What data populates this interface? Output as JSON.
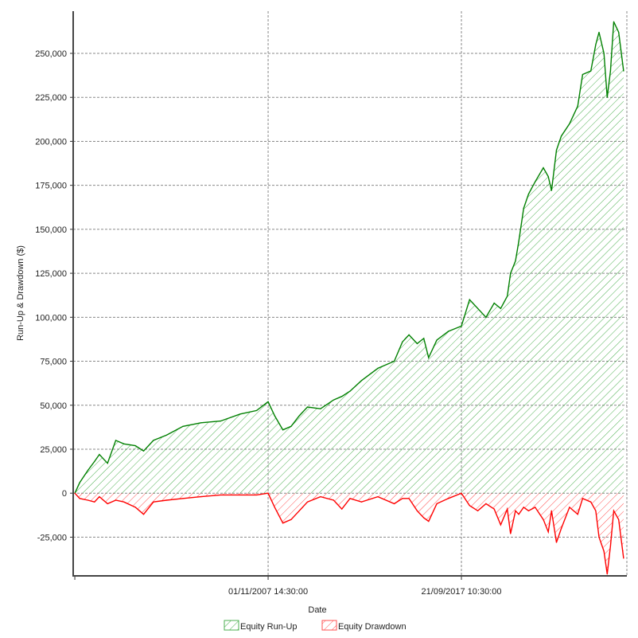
{
  "chart_data": {
    "type": "area",
    "title": "",
    "xlabel": "Date",
    "ylabel": "Run-Up & Drawdown ($)",
    "ylim": [
      -47000,
      274000
    ],
    "xlim": [
      "1997-12",
      "2026-02"
    ],
    "yticks": [
      250000,
      225000,
      200000,
      175000,
      150000,
      125000,
      100000,
      75000,
      50000,
      25000,
      0,
      -25000
    ],
    "ytick_labels": [
      "250,000",
      "225,000",
      "200,000",
      "175,000",
      "150,000",
      "125,000",
      "100,000",
      "75,000",
      "50,000",
      "25,000",
      "0",
      "-25,000"
    ],
    "xticks": [
      {
        "date": "1998-01",
        "label": ""
      },
      {
        "date": "2007-11",
        "label": "01/11/2007 14:30:00"
      },
      {
        "date": "2017-09",
        "label": "21/09/2017 10:30:00"
      }
    ],
    "grid": true,
    "legend_placement": "bottom",
    "colors": {
      "runup_line": "#008000",
      "runup_hatch": "#4caf50",
      "drawdown_line": "#ff0000",
      "drawdown_hatch": "#ff5050"
    },
    "x": [
      "1998-01",
      "1998-04",
      "1998-09",
      "1999-01",
      "1999-04",
      "1999-09",
      "2000-02",
      "2000-07",
      "2001-02",
      "2001-07",
      "2002-01",
      "2002-09",
      "2003-07",
      "2004-06",
      "2005-06",
      "2006-06",
      "2007-04",
      "2007-11",
      "2008-03",
      "2008-08",
      "2009-01",
      "2009-06",
      "2009-11",
      "2010-07",
      "2011-03",
      "2011-08",
      "2012-01",
      "2012-08",
      "2013-06",
      "2014-04",
      "2014-09",
      "2015-01",
      "2015-06",
      "2015-10",
      "2016-01",
      "2016-06",
      "2017-01",
      "2017-09",
      "2018-02",
      "2018-07",
      "2018-12",
      "2019-05",
      "2019-09",
      "2020-01",
      "2020-03",
      "2020-06",
      "2020-08",
      "2020-11",
      "2021-02",
      "2021-06",
      "2021-11",
      "2022-02",
      "2022-04",
      "2022-07",
      "2022-10",
      "2023-03",
      "2023-08",
      "2023-11",
      "2024-04",
      "2024-07",
      "2024-09",
      "2024-12",
      "2025-02",
      "2025-04",
      "2025-06",
      "2025-09",
      "2025-12"
    ],
    "series": [
      {
        "name": "Equity Run-Up",
        "values": [
          0,
          6000,
          13000,
          18000,
          22000,
          17000,
          30000,
          28000,
          27000,
          24000,
          30000,
          33000,
          38000,
          40000,
          41000,
          45000,
          47000,
          52000,
          44000,
          36000,
          38000,
          44000,
          49000,
          48000,
          53000,
          55000,
          58000,
          64000,
          71000,
          75000,
          86000,
          90000,
          85000,
          88000,
          77000,
          87000,
          92000,
          95000,
          110000,
          105000,
          100000,
          108000,
          105000,
          112000,
          125000,
          132000,
          143000,
          162000,
          170000,
          177000,
          185000,
          180000,
          172000,
          195000,
          203000,
          210000,
          220000,
          238000,
          240000,
          255000,
          262000,
          250000,
          225000,
          240000,
          268000,
          262000,
          240000
        ]
      },
      {
        "name": "Equity Drawdown",
        "values": [
          0,
          -3000,
          -4000,
          -5000,
          -2000,
          -6000,
          -4000,
          -5000,
          -8000,
          -12000,
          -5000,
          -4000,
          -3000,
          -2000,
          -1000,
          -1000,
          -1000,
          0,
          -8000,
          -17000,
          -15000,
          -10000,
          -5000,
          -2000,
          -4000,
          -9000,
          -3000,
          -5000,
          -2000,
          -6000,
          -3000,
          -3000,
          -10000,
          -14000,
          -16000,
          -6000,
          -3000,
          0,
          -7000,
          -10000,
          -6000,
          -9000,
          -18000,
          -9000,
          -23000,
          -10000,
          -12000,
          -8000,
          -10000,
          -8000,
          -15000,
          -22000,
          -10000,
          -28000,
          -20000,
          -8000,
          -12000,
          -3000,
          -5000,
          -10000,
          -25000,
          -33000,
          -46000,
          -30000,
          -10000,
          -15000,
          -37000
        ]
      }
    ]
  }
}
